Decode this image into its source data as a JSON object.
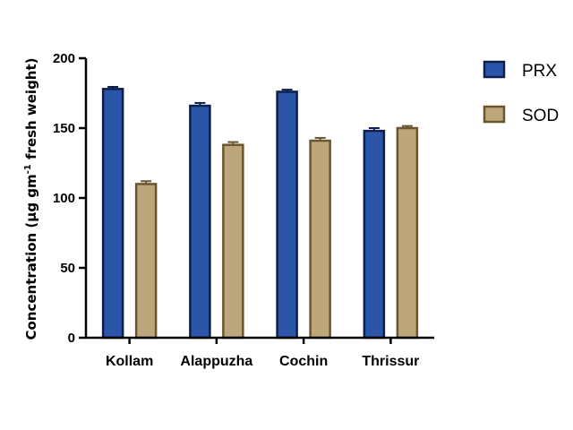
{
  "chart_data": {
    "type": "bar",
    "title": "",
    "xlabel": "",
    "ylabel": {
      "prefix": "Concentration (µg gm",
      "superscript": "-1",
      "suffix": " fresh weight)"
    },
    "ylim": [
      0,
      200
    ],
    "yticks": [
      "0",
      "50",
      "100",
      "150",
      "200"
    ],
    "categories": [
      "Kollam",
      "Alappuzha",
      "Cochin",
      "Thrissur"
    ],
    "series": [
      {
        "name": "PRX",
        "color": "#2b55a8",
        "stroke": "#0e1f4d",
        "values": [
          178,
          166,
          176,
          148
        ],
        "errors": [
          1.5,
          2,
          1.5,
          2
        ]
      },
      {
        "name": "SOD",
        "color": "#bda679",
        "stroke": "#6b5530",
        "values": [
          110,
          138,
          141,
          150
        ],
        "errors": [
          2,
          2,
          2,
          1.5
        ]
      }
    ],
    "grid": false,
    "legend": "right"
  }
}
